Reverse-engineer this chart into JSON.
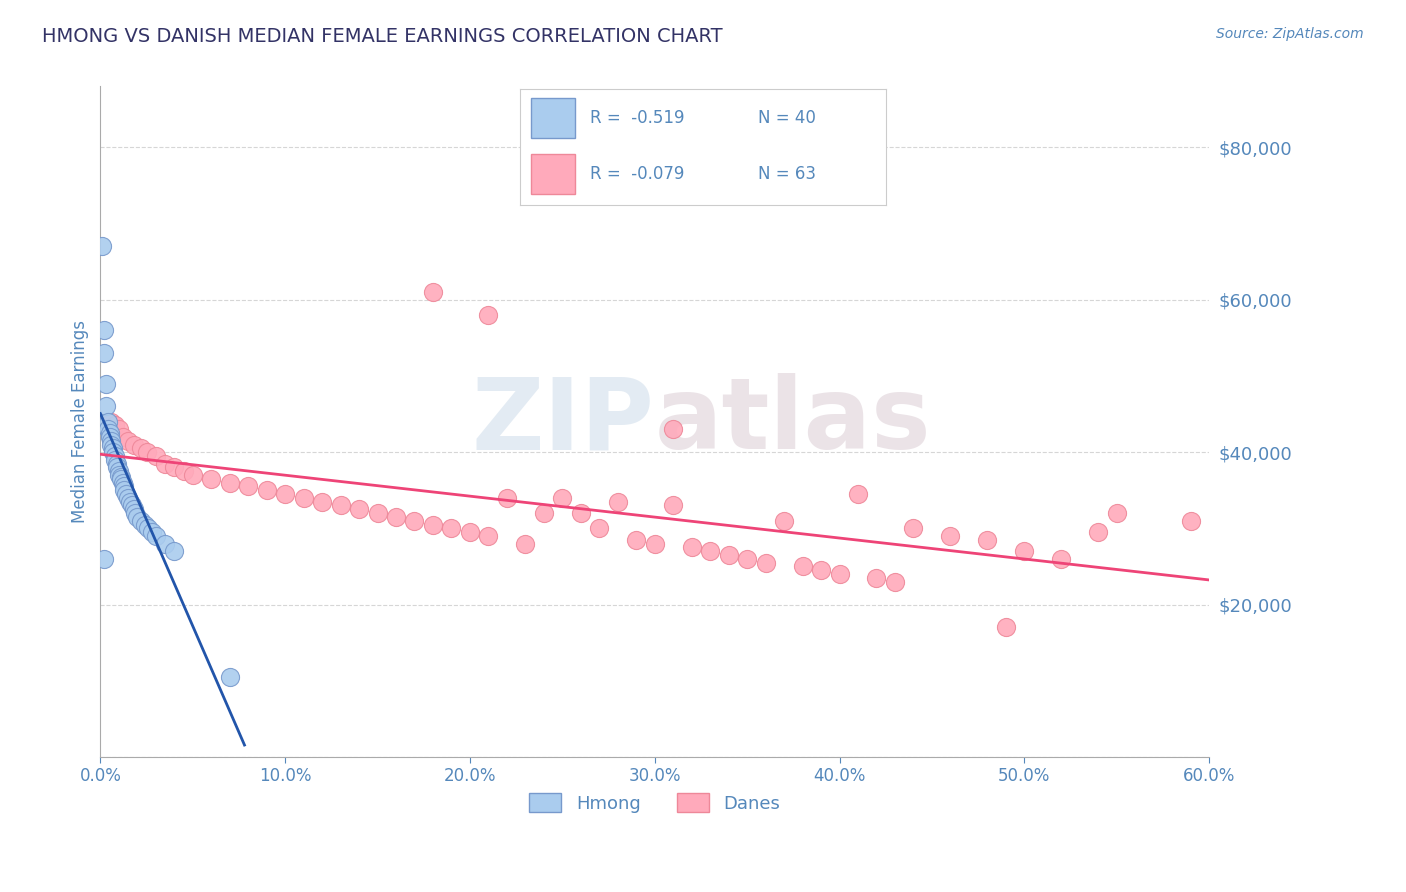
{
  "title": "HMONG VS DANISH MEDIAN FEMALE EARNINGS CORRELATION CHART",
  "source_text": "Source: ZipAtlas.com",
  "ylabel": "Median Female Earnings",
  "xlim": [
    0.0,
    0.6
  ],
  "ylim": [
    0,
    88000
  ],
  "yticks": [
    0,
    20000,
    40000,
    60000,
    80000
  ],
  "ytick_labels": [
    "",
    "$20,000",
    "$40,000",
    "$60,000",
    "$80,000"
  ],
  "xticks": [
    0.0,
    0.1,
    0.2,
    0.3,
    0.4,
    0.5,
    0.6
  ],
  "xtick_labels": [
    "0.0%",
    "10.0%",
    "20.0%",
    "30.0%",
    "40.0%",
    "50.0%",
    "60.0%"
  ],
  "background_color": "#ffffff",
  "grid_color": "#cccccc",
  "title_color": "#333366",
  "axis_color": "#aaaaaa",
  "tick_color": "#5588bb",
  "hmong_color": "#aaccee",
  "hmong_edge_color": "#7799cc",
  "danes_color": "#ffaabb",
  "danes_edge_color": "#ee8899",
  "hmong_line_color": "#2255aa",
  "danes_line_color": "#ee4477",
  "watermark_color1": "#aabbcc",
  "watermark_color2": "#bbccdd",
  "legend_text1": "R =  -0.519   N = 40",
  "legend_text2": "R =  -0.079   N = 63",
  "legend_label1": "Hmong",
  "legend_label2": "Danes",
  "hmong_x": [
    0.001,
    0.002,
    0.002,
    0.003,
    0.003,
    0.004,
    0.004,
    0.005,
    0.005,
    0.006,
    0.006,
    0.007,
    0.007,
    0.008,
    0.008,
    0.009,
    0.009,
    0.01,
    0.01,
    0.011,
    0.011,
    0.012,
    0.013,
    0.013,
    0.014,
    0.015,
    0.016,
    0.017,
    0.018,
    0.019,
    0.02,
    0.022,
    0.024,
    0.026,
    0.028,
    0.03,
    0.035,
    0.04,
    0.002,
    0.07
  ],
  "hmong_y": [
    67000,
    56000,
    53000,
    49000,
    46000,
    44000,
    43000,
    42500,
    42000,
    41500,
    41000,
    40500,
    40000,
    39500,
    39000,
    38500,
    38000,
    37500,
    37000,
    36800,
    36500,
    36000,
    35500,
    35000,
    34500,
    34000,
    33500,
    33000,
    32500,
    32000,
    31500,
    31000,
    30500,
    30000,
    29500,
    29000,
    28000,
    27000,
    26000,
    10500
  ],
  "danes_x": [
    0.006,
    0.008,
    0.01,
    0.012,
    0.015,
    0.018,
    0.022,
    0.025,
    0.03,
    0.035,
    0.04,
    0.045,
    0.05,
    0.06,
    0.07,
    0.08,
    0.09,
    0.1,
    0.11,
    0.12,
    0.13,
    0.14,
    0.15,
    0.16,
    0.17,
    0.18,
    0.19,
    0.2,
    0.21,
    0.22,
    0.23,
    0.24,
    0.25,
    0.26,
    0.27,
    0.28,
    0.29,
    0.3,
    0.31,
    0.32,
    0.33,
    0.34,
    0.35,
    0.36,
    0.37,
    0.38,
    0.39,
    0.4,
    0.41,
    0.42,
    0.43,
    0.44,
    0.46,
    0.48,
    0.5,
    0.52,
    0.54,
    0.55,
    0.18,
    0.21,
    0.31,
    0.49,
    0.59
  ],
  "danes_y": [
    44000,
    43500,
    43000,
    42000,
    41500,
    41000,
    40500,
    40000,
    39500,
    38500,
    38000,
    37500,
    37000,
    36500,
    36000,
    35500,
    35000,
    34500,
    34000,
    33500,
    33000,
    32500,
    32000,
    31500,
    31000,
    30500,
    30000,
    29500,
    29000,
    34000,
    28000,
    32000,
    34000,
    32000,
    30000,
    33500,
    28500,
    28000,
    33000,
    27500,
    27000,
    26500,
    26000,
    25500,
    31000,
    25000,
    24500,
    24000,
    34500,
    23500,
    23000,
    30000,
    29000,
    28500,
    27000,
    26000,
    29500,
    32000,
    61000,
    58000,
    43000,
    17000,
    31000
  ]
}
